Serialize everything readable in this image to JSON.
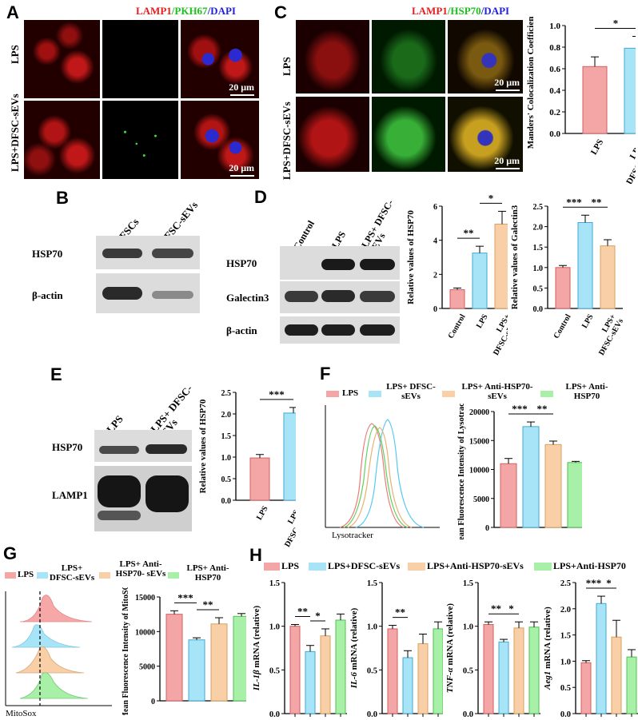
{
  "panels": {
    "A": {
      "letter": "A",
      "title_red": "LAMP1",
      "title_green": "/PKH67",
      "title_blue": "/DAPI",
      "rows": [
        "LPS",
        "LPS+DFSC-sEVs"
      ],
      "scale": "20 μm",
      "colors": {
        "red": "#e81d1d",
        "green": "#1fbf1f",
        "blue": "#2222dd"
      }
    },
    "B": {
      "letter": "B",
      "lanes": [
        "DFSCs",
        "DFSC-sEVs"
      ],
      "proteins": [
        "HSP70",
        "β-actin"
      ]
    },
    "C": {
      "letter": "C",
      "title_red": "LAMP1",
      "title_green": "/HSP70",
      "title_blue": "/DAPI",
      "rows": [
        "LPS",
        "LPS+DFSC-sEVs"
      ],
      "scale": "20 μm"
    },
    "D": {
      "letter": "D",
      "lanes": [
        "Control",
        "LPS",
        "LPS+ DFSC-sEVs"
      ],
      "proteins": [
        "HSP70",
        "Galectin3",
        "β-actin"
      ]
    },
    "E": {
      "letter": "E",
      "lanes": [
        "LPS",
        "LPS+ DFSC-sEVs"
      ],
      "proteins": [
        "HSP70",
        "LAMP1"
      ]
    },
    "F": {
      "letter": "F",
      "legend": [
        "LPS",
        "LPS+ DFSC-sEVs",
        "LPS+ Anti-HSP70-sEVs",
        "LPS+ Anti-HSP70"
      ],
      "flow_xlabel": "Lysotracker"
    },
    "G": {
      "letter": "G",
      "legend": [
        "LPS",
        "LPS+ DFSC-sEVs",
        "LPS+ Anti-HSP70- sEVs",
        "LPS+ Anti-HSP70"
      ],
      "flow_xlabel": "MitoSox"
    },
    "H": {
      "letter": "H",
      "legend": [
        "LPS",
        "LPS+DFSC-sEVs",
        "LPS+Anti-HSP70-sEVs",
        "LPS+Anti-HSP70"
      ]
    }
  },
  "series_colors": [
    "#f4a6a6",
    "#a8e4f8",
    "#f8cfa6",
    "#a8f0a8"
  ],
  "chart_data": [
    {
      "id": "C-bar",
      "type": "bar",
      "categories": [
        "LPS",
        "LPS+ DFSC-sEVs"
      ],
      "values": [
        0.62,
        0.79
      ],
      "errors": [
        0.09,
        0.11
      ],
      "ylabel": "Manders' Colocalization Coefficients",
      "ylim": [
        0.0,
        1.0
      ],
      "yticks": [
        0.0,
        0.2,
        0.4,
        0.6,
        0.8,
        1.0
      ],
      "sig": [
        {
          "pair": [
            0,
            1
          ],
          "label": "*"
        }
      ]
    },
    {
      "id": "D-bar1",
      "type": "bar",
      "categories": [
        "Control",
        "LPS",
        "LPS+ DFSC-sEVs"
      ],
      "values": [
        1.1,
        3.25,
        4.95
      ],
      "errors": [
        0.1,
        0.4,
        0.75
      ],
      "ylabel": "Relative values of HSP70",
      "ylim": [
        0,
        6
      ],
      "yticks": [
        0,
        2,
        4,
        6
      ],
      "sig": [
        {
          "pair": [
            0,
            1
          ],
          "label": "**"
        },
        {
          "pair": [
            1,
            2
          ],
          "label": "*"
        }
      ]
    },
    {
      "id": "D-bar2",
      "type": "bar",
      "categories": [
        "Control",
        "LPS",
        "LPS+ DFSC-sEVs"
      ],
      "values": [
        1.0,
        2.1,
        1.53
      ],
      "errors": [
        0.05,
        0.18,
        0.15
      ],
      "ylabel": "Relative values of Galectin3",
      "ylim": [
        0.0,
        2.5
      ],
      "yticks": [
        0.0,
        0.5,
        1.0,
        1.5,
        2.0,
        2.5
      ],
      "sig": [
        {
          "pair": [
            0,
            1
          ],
          "label": "***"
        },
        {
          "pair": [
            1,
            2
          ],
          "label": "**"
        }
      ]
    },
    {
      "id": "E-bar",
      "type": "bar",
      "categories": [
        "LPS",
        "LPS+ DFSC-sEVs"
      ],
      "values": [
        0.98,
        2.02
      ],
      "errors": [
        0.08,
        0.13
      ],
      "ylabel": "Relative values of HSP70",
      "ylim": [
        0.0,
        2.5
      ],
      "yticks": [
        0.0,
        0.5,
        1.0,
        1.5,
        2.0,
        2.5
      ],
      "sig": [
        {
          "pair": [
            0,
            1
          ],
          "label": "***"
        }
      ]
    },
    {
      "id": "F-bar",
      "type": "bar",
      "categories": [
        "LPS",
        "LPS+ DFSC-sEVs",
        "LPS+ Anti-HSP70-sEVs",
        "LPS+ Anti-HSP70"
      ],
      "values": [
        11000,
        17400,
        14300,
        11200
      ],
      "errors": [
        900,
        800,
        600,
        200
      ],
      "ylabel": "Mean Fluorescence Intensity of Lysotracker",
      "ylim": [
        0,
        20000
      ],
      "yticks": [
        0,
        5000,
        10000,
        15000,
        20000
      ],
      "sig": [
        {
          "pair": [
            0,
            1
          ],
          "label": "***"
        },
        {
          "pair": [
            1,
            2
          ],
          "label": "**"
        }
      ]
    },
    {
      "id": "G-bar",
      "type": "bar",
      "categories": [
        "LPS",
        "LPS+ DFSC-sEVs",
        "LPS+ Anti-HSP70- sEVs",
        "LPS+ Anti-HSP70"
      ],
      "values": [
        12500,
        8800,
        11100,
        12200
      ],
      "errors": [
        500,
        300,
        900,
        400
      ],
      "ylabel": "Mean Fluorescence Intensity of MitoSOX",
      "ylim": [
        0,
        15000
      ],
      "yticks": [
        0,
        5000,
        10000,
        15000
      ],
      "sig": [
        {
          "pair": [
            0,
            1
          ],
          "label": "***"
        },
        {
          "pair": [
            1,
            2
          ],
          "label": "**"
        }
      ]
    },
    {
      "id": "H-bar1",
      "type": "bar",
      "categories": [
        "LPS",
        "LPS+DFSC-sEVs",
        "LPS+Anti-HSP70-sEVs",
        "LPS+Anti-HSP70"
      ],
      "values": [
        1.0,
        0.71,
        0.89,
        1.07
      ],
      "errors": [
        0.02,
        0.07,
        0.08,
        0.07
      ],
      "ylabel_italic": "IL-1β",
      "ylabel_rest": " mRNA (relative)",
      "ylim": [
        0.0,
        1.5
      ],
      "yticks": [
        0.0,
        0.5,
        1.0,
        1.5
      ],
      "sig": [
        {
          "pair": [
            0,
            1
          ],
          "label": "**"
        },
        {
          "pair": [
            1,
            2
          ],
          "label": "*"
        }
      ]
    },
    {
      "id": "H-bar2",
      "type": "bar",
      "categories": [
        "LPS",
        "LPS+DFSC-sEVs",
        "LPS+Anti-HSP70-sEVs",
        "LPS+Anti-HSP70"
      ],
      "values": [
        0.97,
        0.64,
        0.8,
        0.97
      ],
      "errors": [
        0.04,
        0.08,
        0.11,
        0.08
      ],
      "ylabel_italic": "IL-6",
      "ylabel_rest": " mRNA (relative)",
      "ylim": [
        0.0,
        1.5
      ],
      "yticks": [
        0.0,
        0.5,
        1.0,
        1.5
      ],
      "sig": [
        {
          "pair": [
            0,
            1
          ],
          "label": "**"
        }
      ]
    },
    {
      "id": "H-bar3",
      "type": "bar",
      "categories": [
        "LPS",
        "LPS+DFSC-sEVs",
        "LPS+Anti-HSP70-sEVs",
        "LPS+Anti-HSP70"
      ],
      "values": [
        1.02,
        0.82,
        0.98,
        0.99
      ],
      "errors": [
        0.03,
        0.03,
        0.07,
        0.06
      ],
      "ylabel_italic": "TNF-α",
      "ylabel_rest": " mRNA (relative)",
      "ylim": [
        0.0,
        1.5
      ],
      "yticks": [
        0.0,
        0.5,
        1.0,
        1.5
      ],
      "sig": [
        {
          "pair": [
            0,
            1
          ],
          "label": "**"
        },
        {
          "pair": [
            1,
            2
          ],
          "label": "*"
        }
      ]
    },
    {
      "id": "H-bar4",
      "type": "bar",
      "categories": [
        "LPS",
        "LPS+DFSC-sEVs",
        "LPS+Anti-HSP70-sEVs",
        "LPS+Anti-HSP70"
      ],
      "values": [
        0.97,
        2.1,
        1.46,
        1.08
      ],
      "errors": [
        0.04,
        0.14,
        0.32,
        0.14
      ],
      "ylabel_italic": "Aeg1",
      "ylabel_rest": " mRNA (relative)",
      "ylim": [
        0.0,
        2.5
      ],
      "yticks": [
        0.0,
        0.5,
        1.0,
        1.5,
        2.0,
        2.5
      ],
      "sig": [
        {
          "pair": [
            0,
            1
          ],
          "label": "***"
        },
        {
          "pair": [
            1,
            2
          ],
          "label": "*"
        }
      ]
    }
  ]
}
